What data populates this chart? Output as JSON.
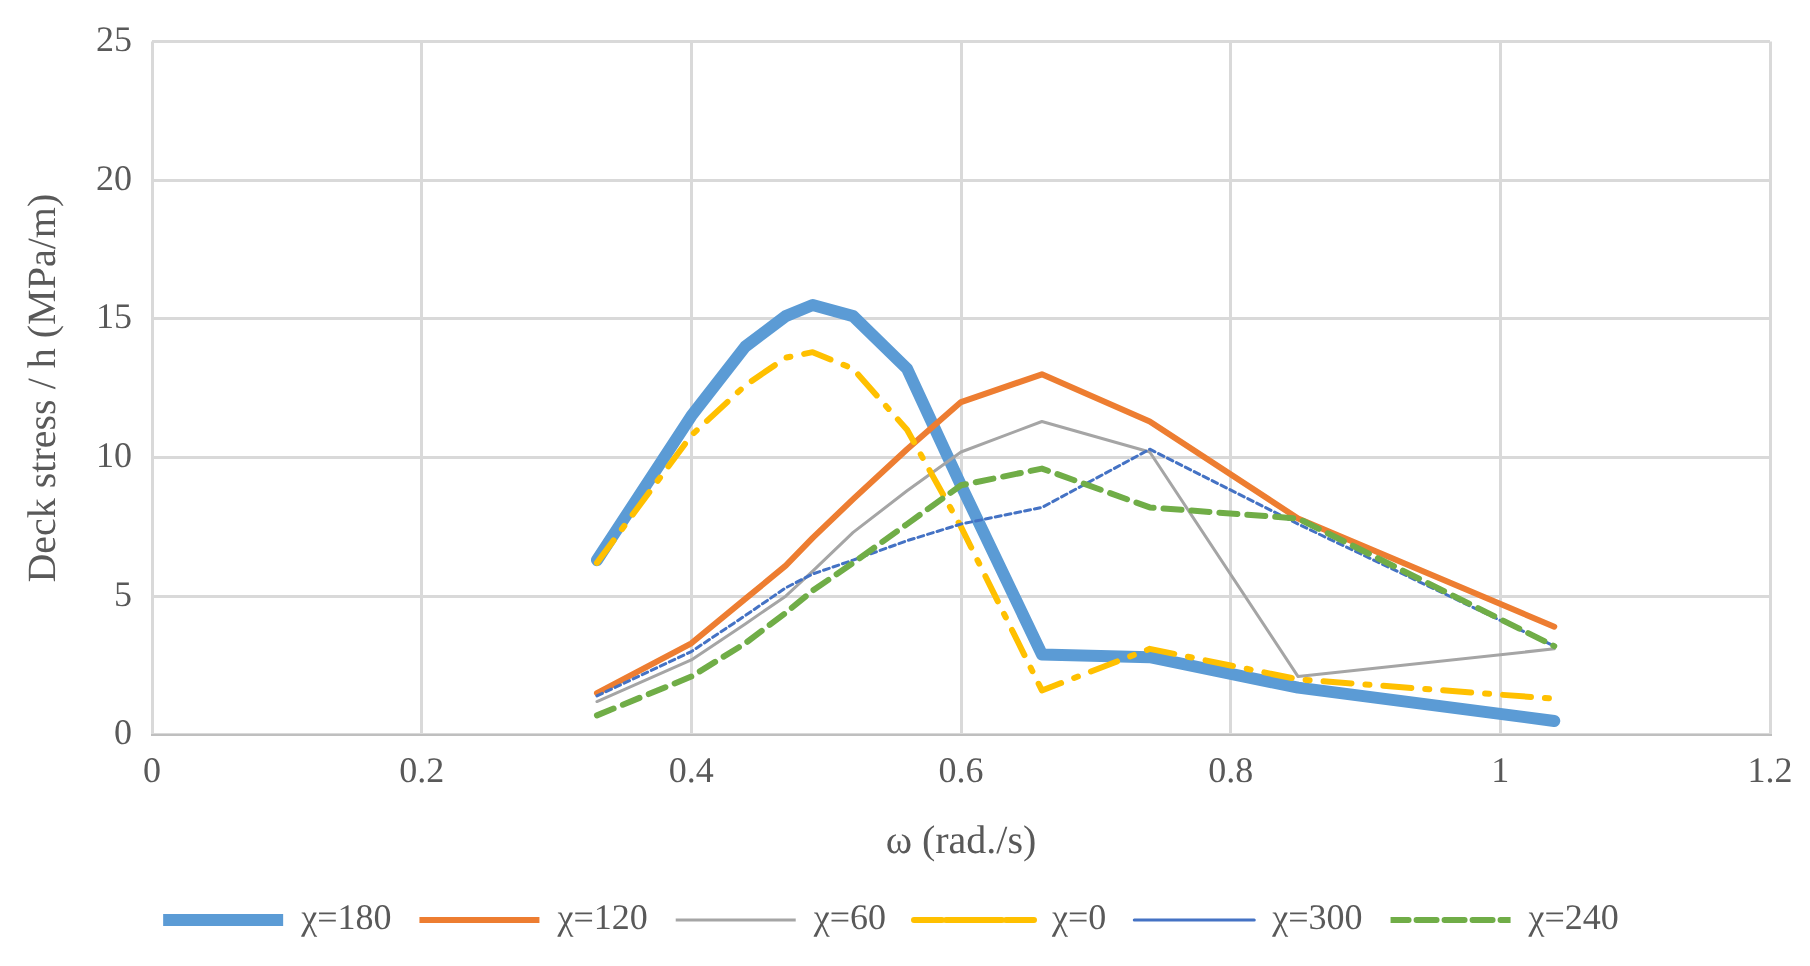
{
  "chart_data": {
    "type": "line",
    "xlabel": "ω (rad./s)",
    "ylabel": "Deck stress / h (MPa/m)",
    "x": [
      0.33,
      0.4,
      0.44,
      0.47,
      0.49,
      0.52,
      0.56,
      0.6,
      0.66,
      0.74,
      0.85,
      1.04
    ],
    "series": [
      {
        "name": "χ=180",
        "color": "#5b9bd5",
        "line_style": "solid",
        "values": [
          6.3,
          11.5,
          14.0,
          15.1,
          15.5,
          15.1,
          13.2,
          9.0,
          2.9,
          2.8,
          1.7,
          0.5
        ]
      },
      {
        "name": "χ=120",
        "color": "#ed7d31",
        "line_style": "solid",
        "values": [
          1.5,
          3.3,
          4.9,
          6.1,
          7.1,
          8.5,
          10.3,
          12.0,
          13.0,
          11.3,
          7.8,
          3.9
        ]
      },
      {
        "name": "χ=60",
        "color": "#a5a5a5",
        "line_style": "solid",
        "values": [
          1.2,
          2.7,
          4.0,
          5.0,
          5.9,
          7.3,
          8.8,
          10.2,
          11.3,
          10.2,
          2.1,
          3.1
        ]
      },
      {
        "name": "χ=0",
        "color": "#ffc000",
        "line_style": "dashdot",
        "values": [
          6.2,
          10.8,
          12.6,
          13.6,
          13.8,
          13.2,
          11.0,
          7.5,
          1.6,
          3.1,
          2.0,
          1.3
        ]
      },
      {
        "name": "χ=300",
        "color": "#4472c4",
        "line_style": "dotted",
        "values": [
          1.4,
          3.0,
          4.3,
          5.3,
          5.8,
          6.3,
          7.0,
          7.6,
          8.2,
          10.3,
          7.6,
          3.2
        ]
      },
      {
        "name": "χ=240",
        "color": "#70ad47",
        "line_style": "dashed",
        "values": [
          0.7,
          2.1,
          3.3,
          4.4,
          5.2,
          6.2,
          7.6,
          9.0,
          9.6,
          8.2,
          7.8,
          3.2
        ]
      }
    ],
    "xlim": [
      0,
      1.2
    ],
    "xticks": [
      0,
      0.2,
      0.4,
      0.6,
      0.8,
      1,
      1.2
    ],
    "ylim": [
      0,
      25
    ],
    "yticks": [
      0,
      5,
      10,
      15,
      20,
      25
    ],
    "grid": true,
    "legend": "bottom",
    "marker": "none"
  }
}
